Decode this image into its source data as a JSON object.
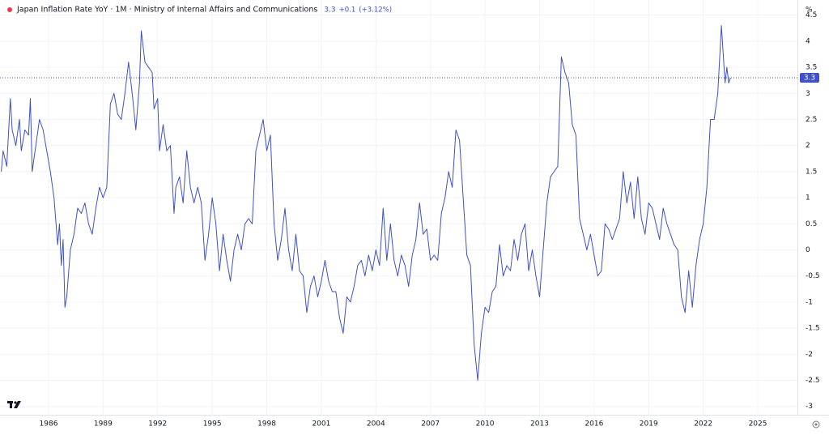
{
  "chart_data": {
    "type": "line",
    "title": "Japan Inflation Rate YoY · 1M · Ministry of Internal Affairs and Communications",
    "last_value": 3.3,
    "change": "+0.1",
    "change_percent": "(+3.12%)",
    "y_unit": "%",
    "color": "#3f51c4",
    "grid": true,
    "xlim": [
      1983.33,
      2027.18
    ],
    "xticks": [
      1986,
      1989,
      1992,
      1995,
      1998,
      2001,
      2004,
      2007,
      2010,
      2013,
      2016,
      2019,
      2022,
      2025
    ],
    "ylim": [
      -3.16,
      4.79
    ],
    "yticks": [
      4.5,
      4,
      3.5,
      3,
      2.5,
      2,
      1.5,
      1,
      0.5,
      0,
      -0.5,
      -1,
      -1.5,
      -2,
      -2.5,
      -3
    ],
    "x": [
      1983.4,
      1983.5,
      1983.7,
      1983.9,
      1984.0,
      1984.2,
      1984.4,
      1984.5,
      1984.7,
      1984.9,
      1985.0,
      1985.1,
      1985.3,
      1985.5,
      1985.7,
      1985.9,
      1986.1,
      1986.3,
      1986.5,
      1986.6,
      1986.7,
      1986.8,
      1986.9,
      1987.0,
      1987.2,
      1987.4,
      1987.6,
      1987.8,
      1988.0,
      1988.2,
      1988.4,
      1988.6,
      1988.8,
      1989.0,
      1989.2,
      1989.4,
      1989.6,
      1989.8,
      1990.0,
      1990.2,
      1990.4,
      1990.6,
      1990.8,
      1991.0,
      1991.1,
      1991.3,
      1991.5,
      1991.7,
      1991.8,
      1992.0,
      1992.1,
      1992.3,
      1992.5,
      1992.7,
      1992.9,
      1993.0,
      1993.2,
      1993.4,
      1993.6,
      1993.8,
      1994.0,
      1994.2,
      1994.4,
      1994.6,
      1994.8,
      1995.0,
      1995.2,
      1995.4,
      1995.6,
      1995.8,
      1996.0,
      1996.2,
      1996.4,
      1996.6,
      1996.8,
      1997.0,
      1997.2,
      1997.4,
      1997.6,
      1997.8,
      1998.0,
      1998.2,
      1998.4,
      1998.6,
      1998.8,
      1999.0,
      1999.2,
      1999.4,
      1999.6,
      1999.8,
      2000.0,
      2000.2,
      2000.4,
      2000.6,
      2000.8,
      2001.0,
      2001.2,
      2001.4,
      2001.6,
      2001.8,
      2002.0,
      2002.2,
      2002.4,
      2002.6,
      2002.8,
      2003.0,
      2003.2,
      2003.4,
      2003.6,
      2003.8,
      2004.0,
      2004.2,
      2004.4,
      2004.6,
      2004.8,
      2005.0,
      2005.2,
      2005.4,
      2005.6,
      2005.8,
      2006.0,
      2006.2,
      2006.4,
      2006.6,
      2006.8,
      2007.0,
      2007.2,
      2007.4,
      2007.6,
      2007.8,
      2008.0,
      2008.2,
      2008.4,
      2008.6,
      2008.8,
      2009.0,
      2009.2,
      2009.4,
      2009.6,
      2009.8,
      2010.0,
      2010.2,
      2010.4,
      2010.6,
      2010.8,
      2011.0,
      2011.2,
      2011.4,
      2011.6,
      2011.8,
      2012.0,
      2012.2,
      2012.4,
      2012.6,
      2012.8,
      2013.0,
      2013.2,
      2013.4,
      2013.6,
      2013.8,
      2014.0,
      2014.2,
      2014.4,
      2014.6,
      2014.8,
      2015.0,
      2015.2,
      2015.4,
      2015.6,
      2015.8,
      2016.0,
      2016.2,
      2016.4,
      2016.6,
      2016.8,
      2017.0,
      2017.2,
      2017.4,
      2017.6,
      2017.8,
      2018.0,
      2018.2,
      2018.4,
      2018.6,
      2018.8,
      2019.0,
      2019.2,
      2019.4,
      2019.6,
      2019.8,
      2020.0,
      2020.2,
      2020.4,
      2020.6,
      2020.8,
      2021.0,
      2021.2,
      2021.4,
      2021.6,
      2021.8,
      2022.0,
      2022.2,
      2022.4,
      2022.6,
      2022.8,
      2023.0,
      2023.2,
      2023.3,
      2023.4,
      2023.5
    ],
    "values": [
      1.5,
      1.9,
      1.6,
      2.9,
      2.3,
      2.0,
      2.5,
      1.9,
      2.3,
      2.2,
      2.9,
      1.5,
      2.0,
      2.5,
      2.3,
      1.9,
      1.5,
      1.0,
      0.1,
      0.5,
      -0.3,
      0.2,
      -1.1,
      -0.9,
      0.0,
      0.3,
      0.8,
      0.7,
      0.9,
      0.5,
      0.3,
      0.8,
      1.2,
      1.0,
      1.2,
      2.8,
      3.0,
      2.6,
      2.5,
      3.0,
      3.6,
      3.0,
      2.3,
      3.2,
      4.2,
      3.6,
      3.5,
      3.4,
      2.7,
      2.9,
      1.9,
      2.4,
      1.9,
      2.0,
      0.7,
      1.2,
      1.4,
      0.9,
      1.9,
      1.2,
      0.9,
      1.2,
      0.9,
      -0.2,
      0.3,
      1.0,
      0.5,
      -0.4,
      0.3,
      -0.2,
      -0.6,
      0.0,
      0.3,
      0.0,
      0.5,
      0.6,
      0.5,
      1.9,
      2.2,
      2.5,
      1.9,
      2.2,
      0.5,
      -0.2,
      0.2,
      0.8,
      0.0,
      -0.4,
      0.3,
      -0.4,
      -0.5,
      -1.2,
      -0.7,
      -0.5,
      -0.9,
      -0.6,
      -0.2,
      -0.6,
      -0.8,
      -0.8,
      -1.3,
      -1.6,
      -0.9,
      -1.0,
      -0.7,
      -0.3,
      -0.2,
      -0.5,
      -0.1,
      -0.4,
      0.0,
      -0.3,
      0.8,
      -0.2,
      0.5,
      -0.2,
      -0.5,
      -0.1,
      -0.3,
      -0.7,
      -0.1,
      0.2,
      0.9,
      0.3,
      0.4,
      -0.2,
      -0.1,
      -0.2,
      0.7,
      1.0,
      1.5,
      1.2,
      2.3,
      2.1,
      1.0,
      -0.1,
      -0.3,
      -1.8,
      -2.5,
      -1.6,
      -1.1,
      -1.2,
      -0.8,
      -0.7,
      0.1,
      -0.5,
      -0.3,
      -0.4,
      0.2,
      -0.2,
      0.3,
      0.5,
      -0.4,
      0.0,
      -0.5,
      -0.9,
      0.0,
      0.9,
      1.4,
      1.5,
      1.6,
      3.7,
      3.4,
      3.2,
      2.4,
      2.2,
      0.6,
      0.3,
      0.0,
      0.3,
      -0.1,
      -0.5,
      -0.4,
      0.5,
      0.4,
      0.2,
      0.4,
      0.6,
      1.5,
      0.9,
      1.3,
      0.6,
      1.4,
      0.6,
      0.3,
      0.9,
      0.8,
      0.5,
      0.2,
      0.8,
      0.5,
      0.3,
      0.1,
      0.0,
      -0.9,
      -1.2,
      -0.4,
      -1.1,
      -0.3,
      0.2,
      0.5,
      1.2,
      2.5,
      2.5,
      3.0,
      4.3,
      3.2,
      3.5,
      3.2,
      3.3
    ]
  }
}
